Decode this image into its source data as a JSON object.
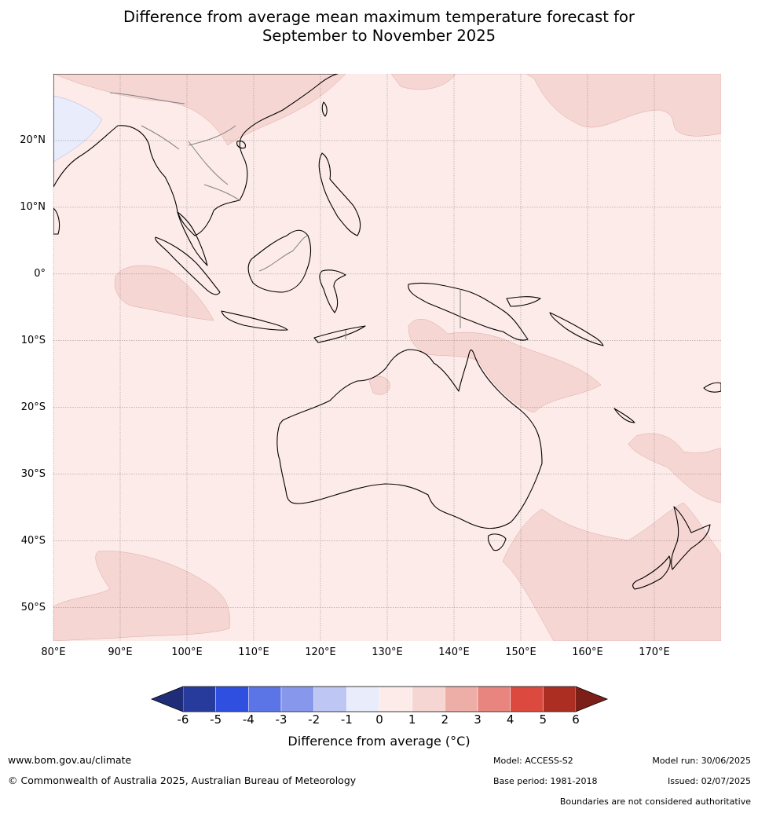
{
  "title_line1": "Difference from average mean maximum temperature forecast for",
  "title_line2": "September to November 2025",
  "map": {
    "lat_labels": [
      "20°N",
      "10°N",
      "0°",
      "10°S",
      "20°S",
      "30°S",
      "40°S",
      "50°S"
    ],
    "lon_labels": [
      "80°E",
      "90°E",
      "100°E",
      "110°E",
      "120°E",
      "130°E",
      "140°E",
      "150°E",
      "160°E",
      "170°E"
    ],
    "lon_range": [
      80,
      180
    ],
    "lat_range": [
      -55,
      30
    ],
    "background_anomaly_class": "0 to 1",
    "background_color": "#fcebe9",
    "anomaly_1_2_color": "#f6d6d3",
    "anomaly_neg1_0_color": "#e8ecfb",
    "land_outline_color": "#000000",
    "boundary_color": "#808080"
  },
  "colorbar": {
    "ticks": [
      "-6",
      "-5",
      "-4",
      "-3",
      "-2",
      "-1",
      "0",
      "1",
      "2",
      "3",
      "4",
      "5",
      "6"
    ],
    "colors": [
      "#263b9c",
      "#2e4fdf",
      "#5b75e6",
      "#8798ec",
      "#bec6f4",
      "#e8ecfb",
      "#fcebe9",
      "#f6d6d3",
      "#eeaea8",
      "#e8857e",
      "#dc4a3f",
      "#ac2e23"
    ],
    "under_color": "#1f2d78",
    "over_color": "#7b1f18",
    "label": "Difference from average (°C)"
  },
  "footer": {
    "url": "www.bom.gov.au/climate",
    "copyright": "© Commonwealth of Australia 2025, Australian Bureau of Meteorology",
    "model": "Model: ACCESS-S2",
    "base_period": "Base period: 1981-2018",
    "model_run": "Model run: 30/06/2025",
    "issued": "Issued: 02/07/2025",
    "disclaimer": "Boundaries are not considered authoritative"
  }
}
